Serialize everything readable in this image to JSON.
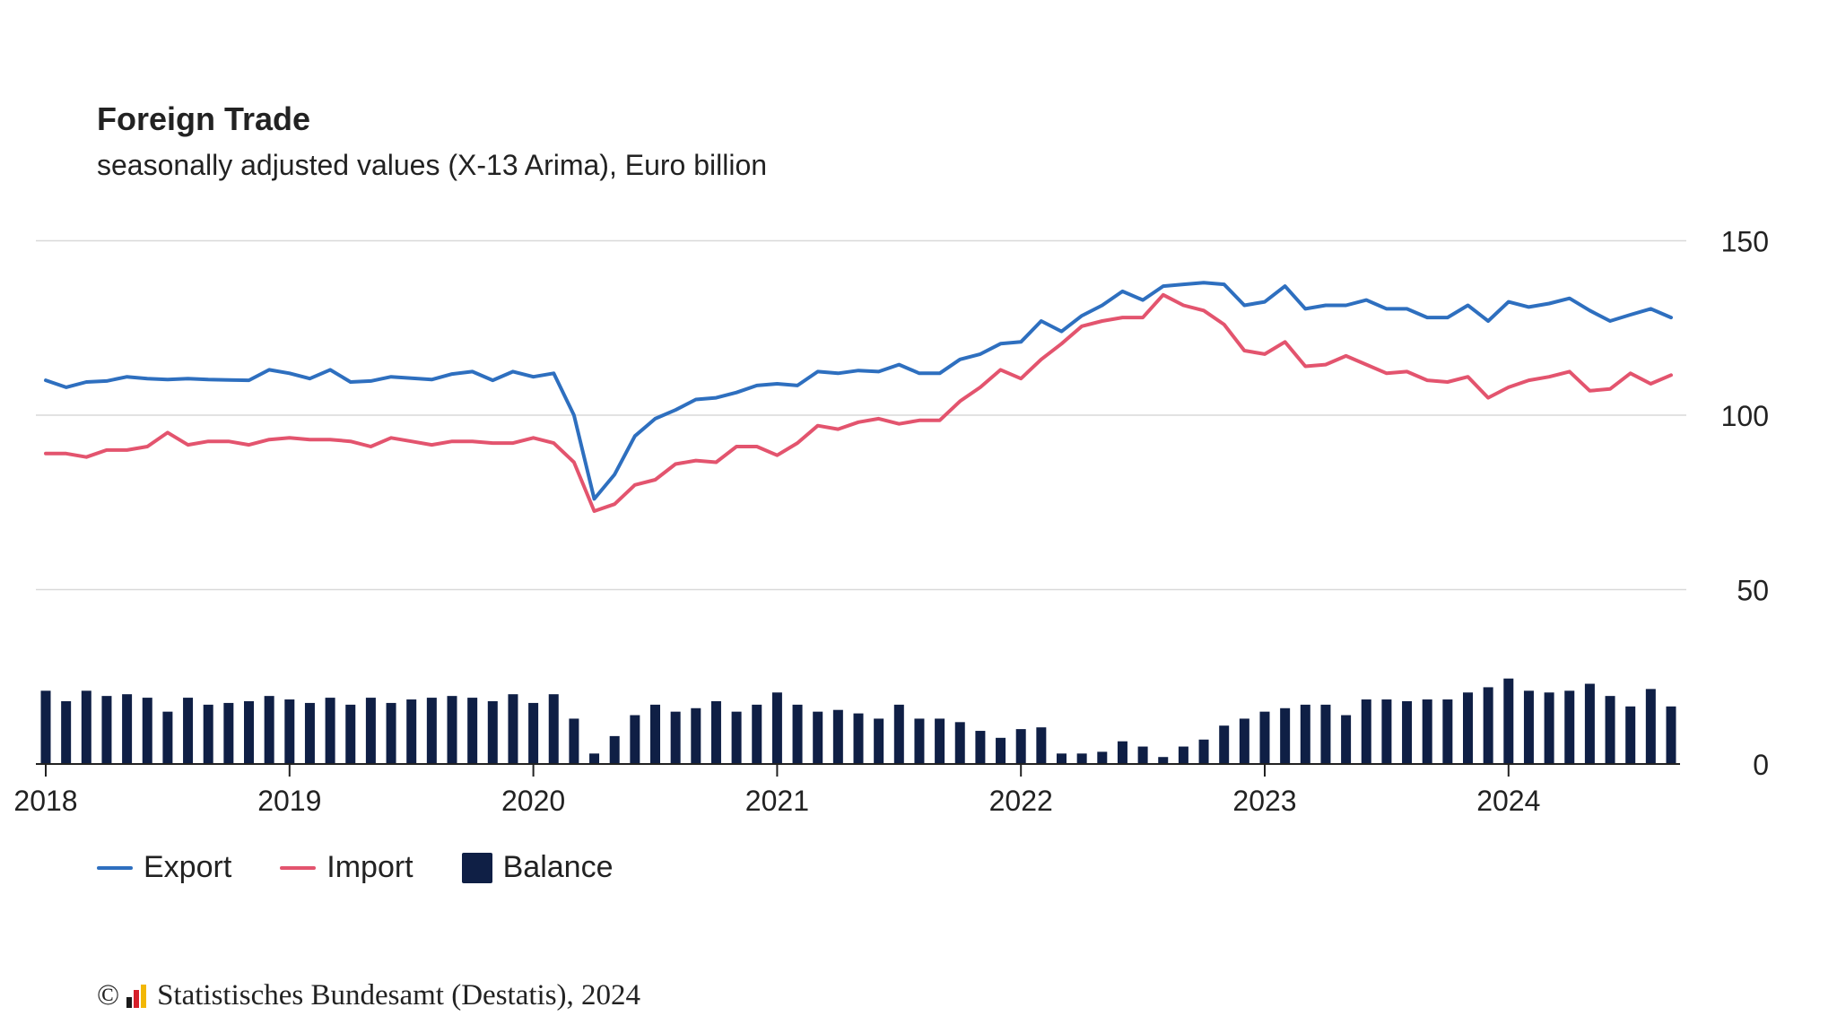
{
  "chart_data": {
    "type": "line",
    "title": "Foreign Trade",
    "subtitle": "seasonally adjusted values (X-13 Arima), Euro billion",
    "x_start": "2018-01",
    "x_end": "2024-09",
    "x_tick_labels": [
      "2018",
      "2019",
      "2020",
      "2021",
      "2022",
      "2023",
      "2024"
    ],
    "y_ticks": [
      0,
      50,
      100,
      150
    ],
    "ylim": [
      0,
      150
    ],
    "grid": true,
    "legend_position": "bottom-left",
    "series": [
      {
        "name": "Export",
        "type": "line",
        "color": "#2e6fbf",
        "values": [
          110.0,
          108.0,
          109.5,
          109.8,
          111.0,
          110.5,
          110.2,
          110.5,
          110.2,
          110.1,
          110.0,
          113.0,
          112.0,
          110.5,
          113.0,
          109.5,
          109.8,
          111.0,
          110.6,
          110.2,
          111.8,
          112.5,
          110.0,
          112.5,
          111.0,
          112.0,
          100.0,
          76.0,
          83.0,
          94.0,
          99.0,
          101.5,
          104.5,
          105.0,
          106.5,
          108.5,
          109.0,
          108.5,
          112.5,
          112.0,
          112.8,
          112.5,
          114.5,
          112.0,
          112.0,
          116.0,
          117.5,
          120.5,
          121.0,
          127.0,
          124.0,
          128.5,
          131.5,
          135.5,
          133.0,
          137.0,
          137.5,
          138.0,
          137.5,
          131.5,
          132.5,
          137.0,
          130.5,
          131.5,
          131.5,
          133.0,
          130.5,
          130.5,
          128.0,
          128.0,
          131.5,
          127.0,
          132.5,
          131.0,
          132.0,
          133.5,
          130.0,
          127.0,
          128.8,
          130.5,
          128.0
        ]
      },
      {
        "name": "Import",
        "type": "line",
        "color": "#e3546e",
        "values": [
          89.0,
          89.0,
          88.0,
          90.0,
          90.0,
          91.0,
          95.0,
          91.5,
          92.5,
          92.5,
          91.5,
          93.0,
          93.5,
          93.0,
          93.0,
          92.5,
          91.0,
          93.5,
          92.5,
          91.5,
          92.5,
          92.5,
          92.0,
          92.0,
          93.5,
          92.0,
          86.5,
          72.5,
          74.5,
          80.0,
          81.5,
          86.0,
          87.0,
          86.5,
          91.0,
          91.0,
          88.5,
          92.0,
          97.0,
          96.0,
          98.0,
          99.0,
          97.5,
          98.5,
          98.5,
          104.0,
          108.0,
          113.0,
          110.5,
          116.0,
          120.5,
          125.5,
          127.0,
          128.0,
          128.0,
          134.5,
          131.5,
          130.0,
          126.0,
          118.5,
          117.5,
          121.0,
          114.0,
          114.5,
          117.0,
          114.5,
          112.0,
          112.5,
          110.0,
          109.5,
          111.0,
          105.0,
          108.0,
          110.0,
          111.0,
          112.5,
          107.0,
          107.5,
          112.0,
          109.0,
          111.5
        ]
      },
      {
        "name": "Balance",
        "type": "bar",
        "color": "#0f1f45",
        "values": [
          21.0,
          18.0,
          21.0,
          19.5,
          20.0,
          19.0,
          15.0,
          19.0,
          17.0,
          17.5,
          18.0,
          19.5,
          18.5,
          17.5,
          19.0,
          17.0,
          19.0,
          17.5,
          18.5,
          19.0,
          19.5,
          19.0,
          18.0,
          20.0,
          17.5,
          20.0,
          13.0,
          3.0,
          8.0,
          14.0,
          17.0,
          15.0,
          16.0,
          18.0,
          15.0,
          17.0,
          20.5,
          17.0,
          15.0,
          15.5,
          14.5,
          13.0,
          17.0,
          13.0,
          13.0,
          12.0,
          9.5,
          7.5,
          10.0,
          10.5,
          3.0,
          3.0,
          3.5,
          6.5,
          5.0,
          2.0,
          5.0,
          7.0,
          11.0,
          13.0,
          15.0,
          16.0,
          17.0,
          17.0,
          14.0,
          18.5,
          18.5,
          18.0,
          18.5,
          18.5,
          20.5,
          22.0,
          24.5,
          21.0,
          20.5,
          21.0,
          23.0,
          19.5,
          16.5,
          21.5,
          16.5
        ]
      }
    ]
  },
  "legend": {
    "export_label": "Export",
    "import_label": "Import",
    "balance_label": "Balance"
  },
  "footer": {
    "copyright_symbol": "©",
    "source": "Statistisches Bundesamt (Destatis), 2024"
  }
}
